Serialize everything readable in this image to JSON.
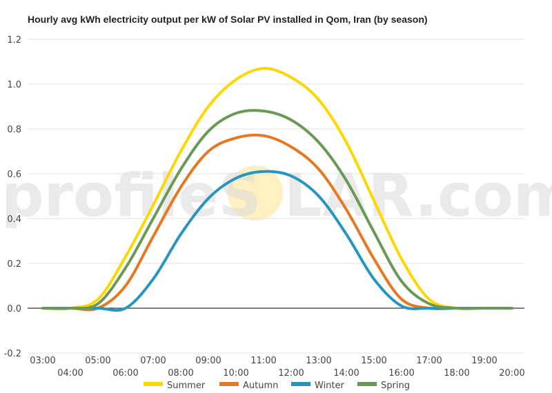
{
  "chart_data": {
    "type": "line",
    "title": "Hourly avg kWh electricity output per kW of Solar PV installed in Qom, Iran (by season)",
    "xlabel": "",
    "ylabel": "",
    "ylim": [
      -0.2,
      1.2
    ],
    "yticks": [
      "-0.2",
      "0.0",
      "0.2",
      "0.4",
      "0.6",
      "0.8",
      "1.0",
      "1.2"
    ],
    "x": [
      "03:00",
      "04:00",
      "05:00",
      "06:00",
      "07:00",
      "08:00",
      "09:00",
      "10:00",
      "11:00",
      "12:00",
      "13:00",
      "14:00",
      "15:00",
      "16:00",
      "17:00",
      "18:00",
      "19:00",
      "20:00"
    ],
    "grid": true,
    "legend": "bottom",
    "series": [
      {
        "name": "Summer",
        "color": "#FFD700",
        "values": [
          0.0,
          0.0,
          0.04,
          0.23,
          0.46,
          0.7,
          0.9,
          1.02,
          1.07,
          1.03,
          0.93,
          0.74,
          0.48,
          0.22,
          0.04,
          0.0,
          0.0,
          0.0
        ]
      },
      {
        "name": "Autumn",
        "color": "#E87722",
        "values": [
          0.0,
          0.0,
          0.0,
          0.1,
          0.32,
          0.54,
          0.7,
          0.76,
          0.77,
          0.72,
          0.62,
          0.44,
          0.22,
          0.04,
          0.0,
          0.0,
          0.0,
          0.0
        ]
      },
      {
        "name": "Winter",
        "color": "#2596BE",
        "values": [
          0.0,
          0.0,
          0.0,
          0.0,
          0.13,
          0.33,
          0.49,
          0.58,
          0.61,
          0.59,
          0.5,
          0.33,
          0.13,
          0.01,
          0.0,
          0.0,
          0.0,
          0.0
        ]
      },
      {
        "name": "Spring",
        "color": "#6A9955",
        "values": [
          0.0,
          0.0,
          0.02,
          0.18,
          0.4,
          0.62,
          0.79,
          0.87,
          0.88,
          0.84,
          0.74,
          0.57,
          0.34,
          0.12,
          0.02,
          0.0,
          0.0,
          0.0
        ]
      }
    ]
  },
  "watermark": {
    "text_left": "profileS",
    "text_right": "LAR.com",
    "sun_color": "#FFE9A8"
  }
}
